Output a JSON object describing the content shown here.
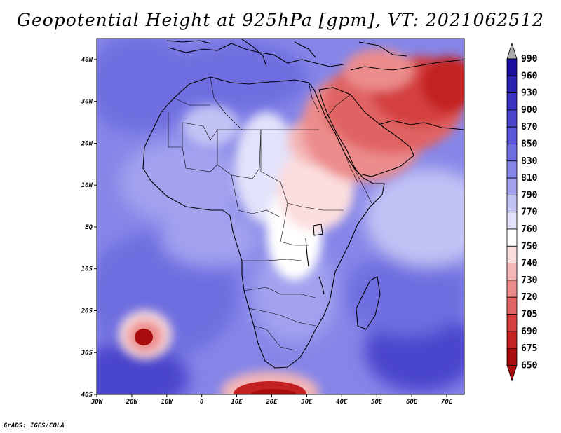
{
  "title": "Geopotential Height at 925hPa [gpm], VT: 2021062512",
  "footer": "GrADS: IGES/COLA",
  "map": {
    "variable": "Geopotential Height",
    "level": "925hPa",
    "units": "gpm",
    "valid_time": "2021062512",
    "lon_range": [
      -30,
      75
    ],
    "lat_range": [
      -40,
      45
    ],
    "x_ticks": [
      "30W",
      "20W",
      "10W",
      "0",
      "10E",
      "20E",
      "30E",
      "40E",
      "50E",
      "60E",
      "70E"
    ],
    "y_ticks": [
      "40N",
      "30N",
      "20N",
      "10N",
      "EQ",
      "10S",
      "20S",
      "30S",
      "40S"
    ]
  },
  "colorbar": {
    "levels": [
      "990",
      "960",
      "930",
      "900",
      "870",
      "850",
      "830",
      "810",
      "790",
      "770",
      "760",
      "750",
      "740",
      "730",
      "720",
      "705",
      "690",
      "675",
      "650"
    ],
    "colors": [
      "#aaaaaa",
      "#1a0fa0",
      "#2b22b0",
      "#3a33c0",
      "#4a45cc",
      "#5a58d8",
      "#6e6ee0",
      "#8686e8",
      "#a2a2ef",
      "#c2c2f5",
      "#e2e2fa",
      "#ffffff",
      "#fbdede",
      "#f4b6b6",
      "#ec8c8c",
      "#e06464",
      "#d44040",
      "#c42222",
      "#a80c0c"
    ]
  }
}
